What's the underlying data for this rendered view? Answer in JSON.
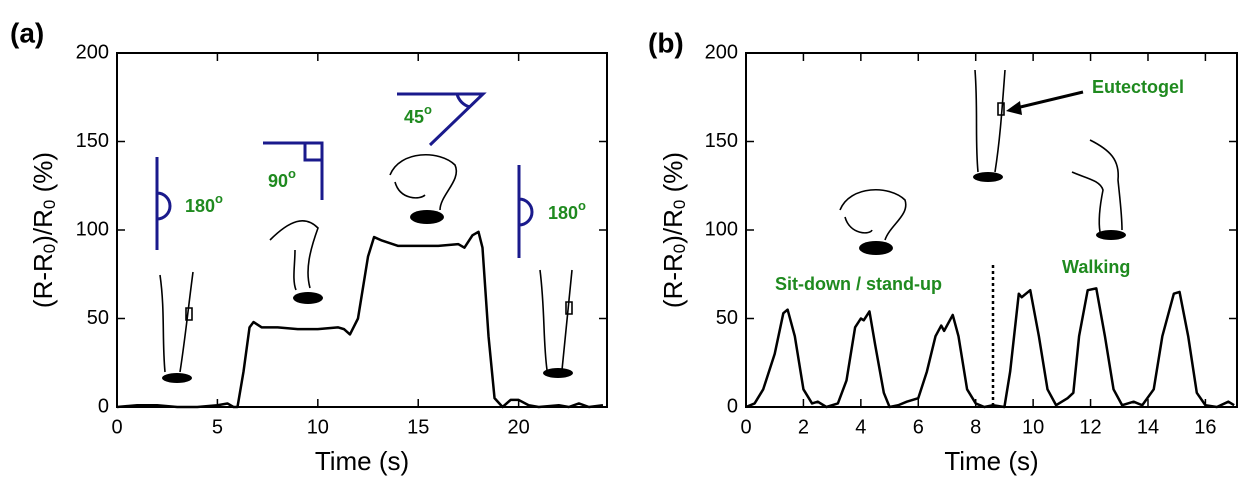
{
  "chart_data": [
    {
      "type": "line",
      "panel": "(a)",
      "xlabel": "Time (s)",
      "ylabel": [
        "(R-R",
        "0",
        ")/R",
        "0",
        " (%)"
      ],
      "color": "#000000",
      "xlim": [
        0,
        24.4
      ],
      "xticks": [
        0,
        5,
        10,
        15,
        20
      ],
      "ylim": [
        0,
        200
      ],
      "yticks": [
        0,
        50,
        100,
        150,
        200
      ],
      "annotations": [
        {
          "text": "180",
          "sup": "o"
        },
        {
          "text": "90",
          "sup": "o"
        },
        {
          "text": "45",
          "sup": "o"
        },
        {
          "text": "180",
          "sup": "o"
        }
      ],
      "x": [
        0,
        1,
        2,
        3,
        4,
        5,
        5.5,
        5.8,
        6,
        6.3,
        6.6,
        6.8,
        7.2,
        8,
        9,
        10,
        11,
        11.3,
        11.6,
        12,
        12.5,
        12.8,
        13.2,
        14,
        15,
        16,
        17,
        17.3,
        17.7,
        18,
        18.2,
        18.5,
        18.8,
        19.2,
        19.6,
        20,
        20.5,
        21,
        22,
        22.5,
        23,
        23.5,
        24.2
      ],
      "values": [
        0,
        1,
        1,
        0,
        0,
        1,
        2,
        0,
        0,
        20,
        45,
        48,
        45,
        45,
        44,
        44,
        45,
        44,
        41,
        50,
        85,
        96,
        94,
        91,
        91,
        91,
        92,
        90,
        97,
        99,
        90,
        40,
        5,
        0,
        4,
        4,
        1,
        0,
        1,
        0,
        2,
        0,
        1
      ]
    },
    {
      "type": "line",
      "panel": "(b)",
      "xlabel": "Time (s)",
      "ylabel": [
        "(R-R",
        "0",
        ")/R",
        "0",
        " (%)"
      ],
      "color": "#000000",
      "xlim": [
        0,
        17.1
      ],
      "xticks": [
        0,
        2,
        4,
        6,
        8,
        10,
        12,
        14,
        16
      ],
      "ylim": [
        0,
        200
      ],
      "yticks": [
        0,
        50,
        100,
        150,
        200
      ],
      "annotations": [
        {
          "text": "Sit-down / stand-up"
        },
        {
          "text": "Walking"
        },
        {
          "text": "Eutectogel"
        }
      ],
      "x": [
        0,
        0.3,
        0.6,
        1,
        1.3,
        1.45,
        1.7,
        2,
        2.3,
        2.5,
        2.8,
        3.2,
        3.5,
        3.8,
        4,
        4.1,
        4.3,
        4.5,
        4.8,
        5,
        5.3,
        5.6,
        6,
        6.3,
        6.6,
        6.8,
        6.9,
        7.2,
        7.4,
        7.7,
        8,
        8.3,
        8.6,
        9,
        9.2,
        9.5,
        9.6,
        9.9,
        10.2,
        10.5,
        10.8,
        11.2,
        11.4,
        11.6,
        11.9,
        12.2,
        12.5,
        12.8,
        13.1,
        13.5,
        13.8,
        14.2,
        14.5,
        14.9,
        15.1,
        15.4,
        15.7,
        16,
        16.4,
        16.8,
        17
      ],
      "values": [
        0,
        2,
        10,
        30,
        53,
        55,
        40,
        10,
        2,
        3,
        0,
        2,
        15,
        45,
        50,
        49,
        54,
        35,
        8,
        0,
        1,
        3,
        5,
        20,
        40,
        46,
        43,
        52,
        40,
        10,
        2,
        0,
        1,
        0,
        20,
        64,
        62,
        66,
        40,
        10,
        1,
        5,
        8,
        40,
        66,
        67,
        40,
        10,
        1,
        3,
        1,
        10,
        40,
        64,
        65,
        40,
        8,
        1,
        0,
        3,
        1
      ]
    }
  ]
}
